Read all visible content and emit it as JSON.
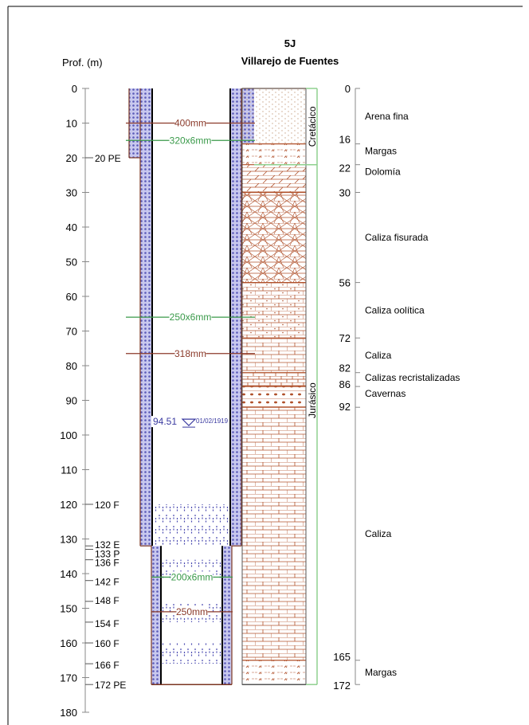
{
  "title": {
    "code": "5J",
    "name": "Villarejo de Fuentes"
  },
  "depth_axis": {
    "label": "Prof. (m)",
    "ticks": [
      0,
      10,
      20,
      30,
      40,
      50,
      60,
      70,
      80,
      90,
      100,
      110,
      120,
      130,
      140,
      150,
      160,
      170,
      180
    ],
    "markers": [
      {
        "depth": 20,
        "label": "20 PE"
      },
      {
        "depth": 120,
        "label": "120 F"
      },
      {
        "depth": 132,
        "label": "132 E"
      },
      {
        "depth": 133,
        "label": "133 P"
      },
      {
        "depth": 136,
        "label": "136 F"
      },
      {
        "depth": 142,
        "label": "142 F"
      },
      {
        "depth": 148,
        "label": "148 F"
      },
      {
        "depth": 154,
        "label": "154 F"
      },
      {
        "depth": 160,
        "label": "160 F"
      },
      {
        "depth": 166,
        "label": "166 F"
      },
      {
        "depth": 172,
        "label": "172 PE"
      }
    ]
  },
  "casing_labels": [
    {
      "depth": 10,
      "text": "400mm",
      "color": "#8b3a2a"
    },
    {
      "depth": 15,
      "text": "320x6mm",
      "color": "#3a9a4a"
    },
    {
      "depth": 66,
      "text": "250x6mm",
      "color": "#3a9a4a"
    },
    {
      "depth": 76.5,
      "text": "318mm",
      "color": "#8b3a2a"
    },
    {
      "depth": 141,
      "text": "200x6mm",
      "color": "#3a9a4a"
    },
    {
      "depth": 151,
      "text": "250mm",
      "color": "#8b3a2a"
    }
  ],
  "water_level": {
    "depth": 94.51,
    "value": "94.51",
    "date": "01/02/1919",
    "color": "#3a3aa0"
  },
  "periods": [
    {
      "name": "Cretácico",
      "top": 0,
      "bottom": 22
    },
    {
      "name": "Jurásico",
      "top": 22,
      "bottom": 172
    }
  ],
  "lithology": [
    {
      "top": 0,
      "bottom": 16,
      "name": "Arena fina",
      "pattern": "sand"
    },
    {
      "top": 16,
      "bottom": 22,
      "name": "Margas",
      "pattern": "marl"
    },
    {
      "top": 22,
      "bottom": 30,
      "name": "Dolomía",
      "pattern": "dolomite"
    },
    {
      "top": 30,
      "bottom": 56,
      "name": "Caliza fisurada",
      "pattern": "fissured"
    },
    {
      "top": 56,
      "bottom": 72,
      "name": "Caliza oolítica",
      "pattern": "oolitic"
    },
    {
      "top": 72,
      "bottom": 82,
      "name": "Caliza",
      "pattern": "limestone"
    },
    {
      "top": 82,
      "bottom": 86,
      "name": "Calizas recristalizadas",
      "pattern": "recrystal"
    },
    {
      "top": 86,
      "bottom": 92,
      "name": "Cavernas",
      "pattern": "caverns"
    },
    {
      "top": 92,
      "bottom": 165,
      "name": "Caliza",
      "pattern": "limestone"
    },
    {
      "top": 165,
      "bottom": 172,
      "name": "Margas",
      "pattern": "marl"
    }
  ],
  "colors": {
    "casing": "#3a3aa0",
    "casing_fill": "#c8c8ee",
    "rock": "#b0502a",
    "accent_green": "#3a9a4a",
    "accent_brown": "#8b3a2a"
  }
}
